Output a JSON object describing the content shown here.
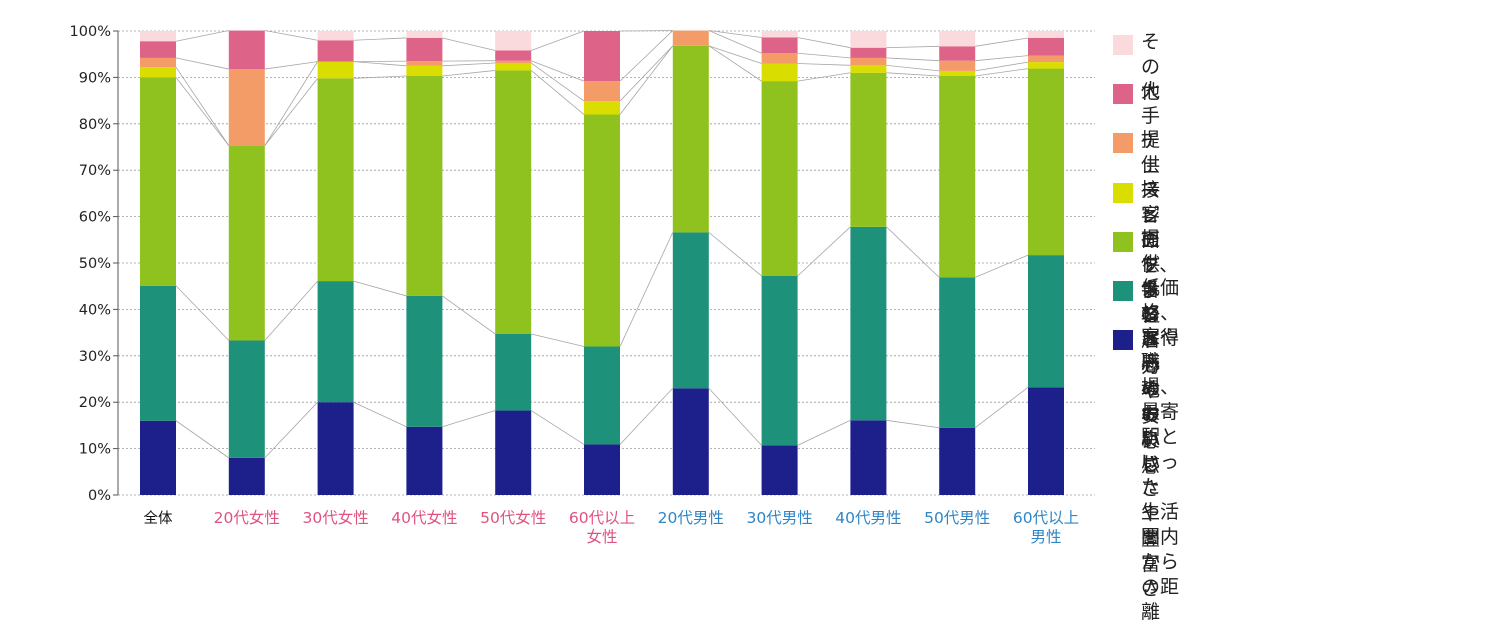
{
  "chart_data": {
    "type": "bar",
    "stacked": true,
    "ylim": [
      0,
      100
    ],
    "yticks": [
      "0%",
      "10%",
      "20%",
      "30%",
      "40%",
      "50%",
      "60%",
      "70%",
      "80%",
      "90%",
      "100%"
    ],
    "categories": [
      {
        "label": "全体",
        "color": "#111111"
      },
      {
        "label": "20代女性",
        "color": "#e0537f"
      },
      {
        "label": "30代女性",
        "color": "#e0537f"
      },
      {
        "label": "40代女性",
        "color": "#e0537f"
      },
      {
        "label": "50代女性",
        "color": "#e0537f"
      },
      {
        "label": "60代以上\n女性",
        "color": "#e0537f"
      },
      {
        "label": "20代男性",
        "color": "#2f86c6"
      },
      {
        "label": "30代男性",
        "color": "#2f86c6"
      },
      {
        "label": "40代男性",
        "color": "#2f86c6"
      },
      {
        "label": "50代男性",
        "color": "#2f86c6"
      },
      {
        "label": "60代以上\n男性",
        "color": "#2f86c6"
      }
    ],
    "series": [
      {
        "name": "家や職場、最寄駅といった\n生活圏内からの距離",
        "color": "#1d1f8a",
        "values": [
          16,
          8,
          20,
          14.7,
          18.2,
          10.9,
          23,
          10.7,
          16.1,
          14.5,
          23.2
        ]
      },
      {
        "name": "低価格、お得感",
        "color": "#1e917a",
        "values": [
          29.1,
          25.3,
          26.1,
          28.2,
          16.5,
          21.1,
          33.6,
          36.5,
          41.7,
          32.4,
          28.5
        ]
      },
      {
        "name": "提供メニューのおいしさや豊富さ",
        "color": "#8fc21f",
        "values": [
          44.9,
          42,
          43.7,
          47.4,
          56.8,
          50,
          40.2,
          42,
          33.2,
          43.4,
          40.2
        ]
      },
      {
        "name": "接客面を含む居心地の良さ",
        "color": "#dadd00",
        "values": [
          2.2,
          0,
          3.6,
          2.2,
          1.6,
          2.9,
          0,
          3.8,
          1.6,
          1.1,
          1.4
        ]
      },
      {
        "name": "提供スピード、手軽さ",
        "color": "#f39c68",
        "values": [
          2,
          16.5,
          0,
          1,
          0.5,
          4.3,
          3.3,
          2.2,
          1.6,
          2.2,
          1.4
        ]
      },
      {
        "name": "大手チェーンのブランド力や安心感",
        "color": "#de6389",
        "values": [
          3.6,
          8.3,
          4.6,
          5,
          2.2,
          10.8,
          0,
          3.4,
          2.2,
          3.1,
          3.8
        ]
      },
      {
        "name": "その他",
        "color": "#fadadd",
        "values": [
          2.2,
          0,
          2,
          1.5,
          4.2,
          0,
          0,
          1.4,
          3.6,
          3.3,
          1.5
        ]
      }
    ]
  }
}
